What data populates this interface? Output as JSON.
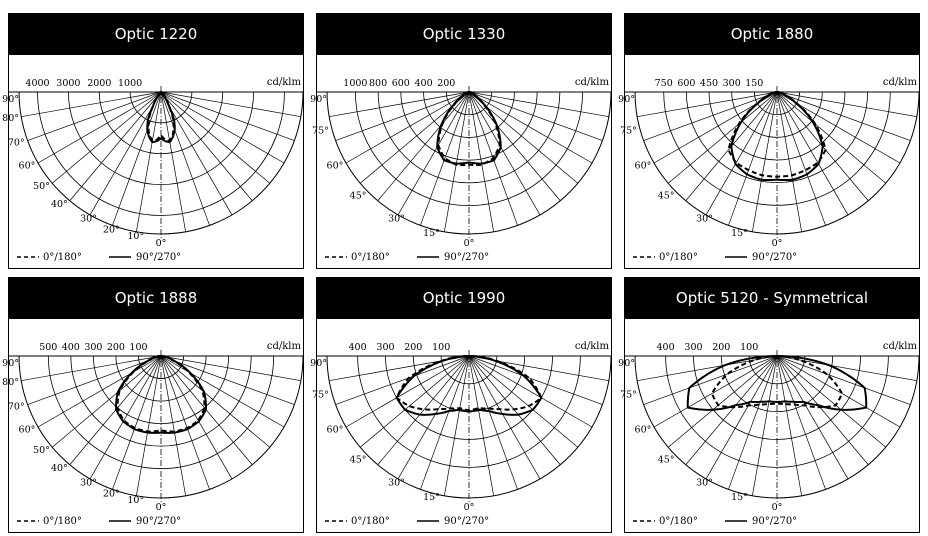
{
  "chart_data": [
    {
      "type": "polar",
      "title": "Optic 1220",
      "unit": "cd/klm",
      "radial_ticks": [
        4000,
        3000,
        2000,
        1000
      ],
      "rmax": 4600,
      "angle_labels": [
        "90°",
        "80°",
        "70°",
        "60°",
        "50°",
        "40°",
        "30°",
        "20°",
        "10°",
        "0°"
      ],
      "legend": [
        "0°/180°",
        "90°/270°"
      ],
      "series": [
        {
          "name": "0°/180°",
          "style": "dashed",
          "angles": [
            0,
            5,
            10,
            15,
            20,
            25,
            30,
            40,
            90
          ],
          "values": [
            1400,
            1550,
            1600,
            1450,
            1200,
            900,
            450,
            100,
            0
          ]
        },
        {
          "name": "90°/270°",
          "style": "solid",
          "angles": [
            0,
            5,
            10,
            15,
            20,
            25,
            30,
            40,
            90
          ],
          "values": [
            1500,
            1600,
            1650,
            1500,
            1300,
            1000,
            500,
            100,
            0
          ]
        }
      ]
    },
    {
      "type": "polar",
      "title": "Optic 1330",
      "unit": "cd/klm",
      "radial_ticks": [
        1000,
        800,
        600,
        400,
        200
      ],
      "rmax": 1250,
      "angle_labels": [
        "90°",
        "75°",
        "60°",
        "45°",
        "30°",
        "15°",
        "0°"
      ],
      "legend": [
        "0°/180°",
        "90°/270°"
      ],
      "series": [
        {
          "name": "0°/180°",
          "style": "dashed",
          "angles": [
            0,
            10,
            20,
            30,
            40,
            50,
            60,
            90
          ],
          "values": [
            640,
            650,
            620,
            540,
            360,
            160,
            50,
            0
          ]
        },
        {
          "name": "90°/270°",
          "style": "solid",
          "angles": [
            0,
            10,
            20,
            30,
            40,
            50,
            60,
            90
          ],
          "values": [
            620,
            640,
            640,
            560,
            380,
            180,
            60,
            0
          ]
        }
      ]
    },
    {
      "type": "polar",
      "title": "Optic 1880",
      "unit": "cd/klm",
      "radial_ticks": [
        750,
        600,
        450,
        300,
        150
      ],
      "rmax": 940,
      "angle_labels": [
        "90°",
        "75°",
        "60°",
        "45°",
        "30°",
        "15°",
        "0°"
      ],
      "legend": [
        "0°/180°",
        "90°/270°"
      ],
      "series": [
        {
          "name": "0°/180°",
          "style": "dashed",
          "angles": [
            0,
            10,
            20,
            30,
            40,
            50,
            60,
            70,
            90
          ],
          "values": [
            560,
            560,
            550,
            540,
            500,
            330,
            150,
            50,
            0
          ]
        },
        {
          "name": "90°/270°",
          "style": "solid",
          "angles": [
            0,
            10,
            20,
            30,
            40,
            50,
            60,
            70,
            90
          ],
          "values": [
            580,
            590,
            580,
            550,
            470,
            310,
            140,
            50,
            0
          ]
        }
      ]
    },
    {
      "type": "polar",
      "title": "Optic 1888",
      "unit": "cd/klm",
      "radial_ticks": [
        500,
        400,
        300,
        200,
        100
      ],
      "rmax": 630,
      "angle_labels": [
        "90°",
        "80°",
        "70°",
        "60°",
        "50°",
        "40°",
        "30°",
        "20°",
        "10°",
        "0°"
      ],
      "legend": [
        "0°/180°",
        "90°/270°"
      ],
      "series": [
        {
          "name": "0°/180°",
          "style": "dashed",
          "angles": [
            0,
            10,
            20,
            30,
            40,
            50,
            60,
            70,
            90
          ],
          "values": [
            330,
            340,
            340,
            330,
            300,
            240,
            140,
            50,
            0
          ]
        },
        {
          "name": "90°/270°",
          "style": "solid",
          "angles": [
            0,
            10,
            20,
            30,
            40,
            50,
            60,
            70,
            90
          ],
          "values": [
            340,
            345,
            345,
            335,
            310,
            250,
            150,
            60,
            0
          ]
        }
      ]
    },
    {
      "type": "polar",
      "title": "Optic 1990",
      "unit": "cd/klm",
      "radial_ticks": [
        400,
        300,
        200,
        100
      ],
      "rmax": 510,
      "angle_labels": [
        "90°",
        "75°",
        "60°",
        "45°",
        "30°",
        "15°",
        "0°"
      ],
      "legend": [
        "0°/180°",
        "90°/270°"
      ],
      "series": [
        {
          "name": "0°/180°",
          "style": "dashed",
          "angles": [
            0,
            10,
            20,
            30,
            40,
            50,
            60,
            70,
            80,
            90
          ],
          "values": [
            195,
            190,
            200,
            220,
            250,
            280,
            300,
            230,
            100,
            0
          ]
        },
        {
          "name": "90°/270°",
          "style": "solid",
          "angles": [
            0,
            10,
            20,
            30,
            40,
            50,
            60,
            70,
            80,
            90
          ],
          "values": [
            200,
            195,
            210,
            240,
            275,
            300,
            300,
            210,
            90,
            0
          ]
        }
      ]
    },
    {
      "type": "polar",
      "title": "Optic 5120 - Symmetrical",
      "unit": "cd/klm",
      "radial_ticks": [
        400,
        300,
        200,
        100
      ],
      "rmax": 510,
      "angle_labels": [
        "90°",
        "75°",
        "60°",
        "45°",
        "30°",
        "15°",
        "0°"
      ],
      "legend": [
        "0°/180°",
        "90°/270°"
      ],
      "series": [
        {
          "name": "0°/180°",
          "style": "dashed",
          "angles": [
            0,
            10,
            20,
            30,
            40,
            50,
            60,
            70,
            80,
            90
          ],
          "values": [
            170,
            175,
            185,
            205,
            240,
            275,
            270,
            190,
            80,
            0
          ]
        },
        {
          "name": "90°/270°",
          "style": "solid",
          "angles": [
            0,
            10,
            20,
            30,
            40,
            50,
            60,
            70,
            80,
            90
          ],
          "values": [
            165,
            165,
            175,
            190,
            230,
            300,
            370,
            335,
            190,
            0
          ]
        }
      ]
    }
  ]
}
